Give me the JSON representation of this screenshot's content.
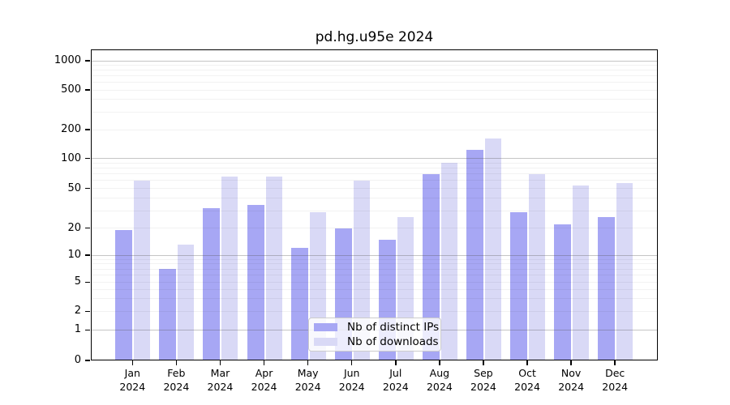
{
  "title": "pd.hg.u95e 2024",
  "legend": {
    "items": [
      {
        "label": "Nb of distinct IPs",
        "color": "#a7a7f4"
      },
      {
        "label": "Nb of downloads",
        "color": "#d9d9f6"
      }
    ]
  },
  "chart_data": {
    "type": "bar",
    "title": "pd.hg.u95e 2024",
    "categories": [
      "Jan",
      "Feb",
      "Mar",
      "Apr",
      "May",
      "Jun",
      "Jul",
      "Aug",
      "Sep",
      "Oct",
      "Nov",
      "Dec"
    ],
    "category_year": "2024",
    "series": [
      {
        "name": "Nb of distinct IPs",
        "color": "#a7a7f4",
        "values": [
          19,
          7,
          32,
          34,
          12,
          20,
          15,
          70,
          122,
          29,
          22,
          26
        ]
      },
      {
        "name": "Nb of downloads",
        "color": "#d9d9f6",
        "values": [
          60,
          13,
          66,
          66,
          29,
          60,
          26,
          90,
          160,
          70,
          54,
          57
        ]
      }
    ],
    "yscale": "pseudo-log",
    "yticks": [
      0,
      1,
      2,
      5,
      10,
      20,
      50,
      100,
      200,
      500,
      1000
    ],
    "ylim": [
      0,
      1000
    ],
    "xlabel": "",
    "ylabel": "",
    "grid": "major+minor horizontal",
    "legend_position": "lower center"
  }
}
